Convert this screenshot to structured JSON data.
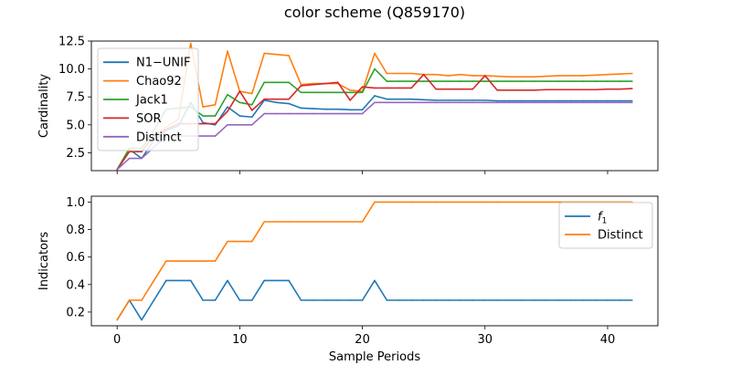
{
  "figure": {
    "title": "color scheme (Q859170)"
  },
  "chart_data": [
    {
      "type": "line",
      "xlabel": "",
      "ylabel": "Cardinality",
      "xlim": [
        -2.1,
        44.1
      ],
      "ylim": [
        0.9,
        12.5
      ],
      "yticks": [
        2.5,
        5.0,
        7.5,
        10.0,
        12.5
      ],
      "ytick_labels": [
        "2.5",
        "5.0",
        "7.5",
        "10.0",
        "12.5"
      ],
      "xticks": [
        0,
        10,
        20,
        30,
        40
      ],
      "xtick_labels": [
        "",
        "",
        "",
        "",
        ""
      ],
      "legend_position": "upper-left",
      "x": [
        0,
        1,
        2,
        3,
        4,
        5,
        6,
        7,
        8,
        9,
        10,
        11,
        12,
        13,
        14,
        15,
        16,
        17,
        18,
        19,
        20,
        21,
        22,
        23,
        24,
        25,
        26,
        27,
        28,
        29,
        30,
        31,
        32,
        33,
        34,
        35,
        36,
        37,
        38,
        39,
        40,
        41,
        42
      ],
      "series": [
        {
          "name": "N1−UNIF",
          "color": "#1f77b4",
          "values": [
            1.0,
            2.8,
            2.0,
            3.6,
            4.5,
            4.9,
            7.0,
            5.2,
            5.0,
            6.6,
            5.8,
            5.7,
            7.2,
            7.0,
            6.9,
            6.5,
            6.45,
            6.4,
            6.4,
            6.35,
            6.35,
            7.6,
            7.3,
            7.3,
            7.3,
            7.25,
            7.2,
            7.2,
            7.2,
            7.2,
            7.2,
            7.15,
            7.15,
            7.15,
            7.15,
            7.15,
            7.15,
            7.15,
            7.15,
            7.15,
            7.15,
            7.15,
            7.15
          ]
        },
        {
          "name": "Chao92",
          "color": "#ff7f0e",
          "values": [
            1.0,
            2.7,
            2.6,
            4.0,
            4.8,
            5.5,
            12.3,
            6.6,
            6.8,
            11.6,
            8.0,
            7.8,
            11.4,
            11.3,
            11.2,
            8.6,
            8.7,
            8.7,
            8.7,
            8.1,
            8.0,
            11.4,
            9.6,
            9.6,
            9.6,
            9.5,
            9.5,
            9.4,
            9.5,
            9.4,
            9.4,
            9.35,
            9.3,
            9.3,
            9.3,
            9.35,
            9.4,
            9.4,
            9.4,
            9.45,
            9.5,
            9.55,
            9.6
          ]
        },
        {
          "name": "Jack1",
          "color": "#2ca02c",
          "values": [
            1.0,
            2.9,
            2.9,
            4.5,
            6.4,
            6.5,
            6.6,
            5.8,
            5.8,
            7.7,
            7.0,
            6.8,
            8.8,
            8.8,
            8.8,
            7.9,
            7.9,
            7.9,
            7.9,
            7.9,
            7.9,
            10.0,
            8.9,
            8.9,
            8.9,
            8.9,
            8.9,
            8.9,
            8.9,
            8.9,
            8.9,
            8.9,
            8.9,
            8.9,
            8.9,
            8.9,
            8.9,
            8.9,
            8.9,
            8.9,
            8.9,
            8.9,
            8.9
          ]
        },
        {
          "name": "SOR",
          "color": "#d62728",
          "values": [
            1.0,
            2.6,
            2.6,
            4.0,
            4.6,
            5.1,
            5.1,
            5.1,
            5.1,
            6.2,
            8.0,
            6.3,
            7.3,
            7.3,
            7.3,
            8.5,
            8.6,
            8.7,
            8.8,
            7.2,
            8.4,
            8.3,
            8.3,
            8.3,
            8.3,
            9.5,
            8.2,
            8.2,
            8.2,
            8.2,
            9.4,
            8.1,
            8.1,
            8.1,
            8.1,
            8.15,
            8.15,
            8.15,
            8.15,
            8.15,
            8.2,
            8.2,
            8.25
          ]
        },
        {
          "name": "Distinct",
          "color": "#9467bd",
          "values": [
            1.0,
            2.0,
            2.0,
            3.0,
            4.0,
            4.0,
            4.0,
            4.0,
            4.0,
            5.0,
            5.0,
            5.0,
            6.0,
            6.0,
            6.0,
            6.0,
            6.0,
            6.0,
            6.0,
            6.0,
            6.0,
            7.0,
            7.0,
            7.0,
            7.0,
            7.0,
            7.0,
            7.0,
            7.0,
            7.0,
            7.0,
            7.0,
            7.0,
            7.0,
            7.0,
            7.0,
            7.0,
            7.0,
            7.0,
            7.0,
            7.0,
            7.0,
            7.0
          ]
        }
      ]
    },
    {
      "type": "line",
      "xlabel": "Sample Periods",
      "ylabel": "Indicators",
      "xlim": [
        -2.1,
        44.1
      ],
      "ylim": [
        0.1,
        1.043
      ],
      "yticks": [
        0.2,
        0.4,
        0.6,
        0.8,
        1.0
      ],
      "ytick_labels": [
        "0.2",
        "0.4",
        "0.6",
        "0.8",
        "1.0"
      ],
      "xticks": [
        0,
        10,
        20,
        30,
        40
      ],
      "xtick_labels": [
        "0",
        "10",
        "20",
        "30",
        "40"
      ],
      "legend_position": "upper-right",
      "x": [
        0,
        1,
        2,
        3,
        4,
        5,
        6,
        7,
        8,
        9,
        10,
        11,
        12,
        13,
        14,
        15,
        16,
        17,
        18,
        19,
        20,
        21,
        22,
        23,
        24,
        25,
        26,
        27,
        28,
        29,
        30,
        31,
        32,
        33,
        34,
        35,
        36,
        37,
        38,
        39,
        40,
        41,
        42
      ],
      "series": [
        {
          "name": "f1",
          "label_base": "f",
          "label_sub": "1",
          "color": "#1f77b4",
          "values": [
            0.143,
            0.286,
            0.143,
            0.286,
            0.429,
            0.429,
            0.429,
            0.286,
            0.286,
            0.429,
            0.286,
            0.286,
            0.429,
            0.429,
            0.429,
            0.286,
            0.286,
            0.286,
            0.286,
            0.286,
            0.286,
            0.429,
            0.286,
            0.286,
            0.286,
            0.286,
            0.286,
            0.286,
            0.286,
            0.286,
            0.286,
            0.286,
            0.286,
            0.286,
            0.286,
            0.286,
            0.286,
            0.286,
            0.286,
            0.286,
            0.286,
            0.286,
            0.286
          ]
        },
        {
          "name": "Distinct",
          "color": "#ff7f0e",
          "values": [
            0.143,
            0.286,
            0.286,
            0.429,
            0.571,
            0.571,
            0.571,
            0.571,
            0.571,
            0.714,
            0.714,
            0.714,
            0.857,
            0.857,
            0.857,
            0.857,
            0.857,
            0.857,
            0.857,
            0.857,
            0.857,
            1.0,
            1.0,
            1.0,
            1.0,
            1.0,
            1.0,
            1.0,
            1.0,
            1.0,
            1.0,
            1.0,
            1.0,
            1.0,
            1.0,
            1.0,
            1.0,
            1.0,
            1.0,
            1.0,
            1.0,
            1.0,
            1.0
          ]
        }
      ]
    }
  ]
}
